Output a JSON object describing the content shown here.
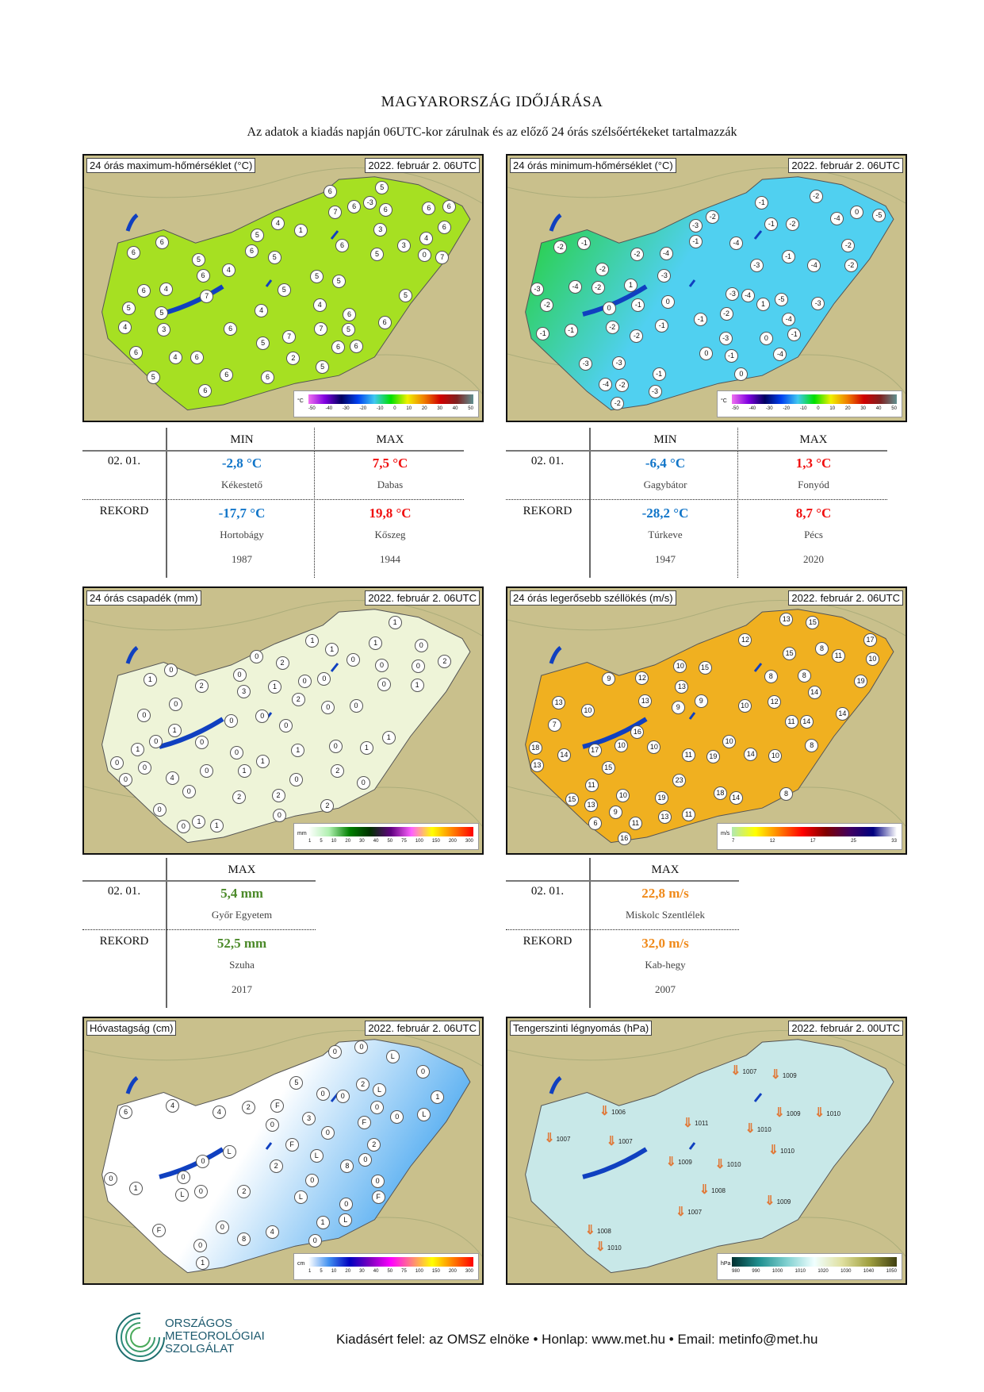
{
  "header": {
    "title": "MAGYARORSZÁG IDŐJÁRÁSA",
    "subtitle": "Az adatok a kiadás napján 06UTC-kor zárulnak és az előző 24 órás szélsőértékeket tartalmazzák"
  },
  "maps": [
    {
      "title": "24 órás maximum-hőmérséklet (°C)",
      "date": "2022. február 2. 06UTC",
      "colors": {
        "land": "#a6e022",
        "land2": "#c8e81e"
      },
      "legend": {
        "unit": "°C",
        "ticks": [
          "-50",
          "-40",
          "-30",
          "-20",
          "-10",
          "0",
          "10",
          "20",
          "30",
          "40",
          "50"
        ],
        "gradient": [
          "#f070f0",
          "#8000e0",
          "#000060",
          "#0040f0",
          "#40c8f0",
          "#00e000",
          "#f0f000",
          "#f08000",
          "#d00000",
          "#802020",
          "#609090"
        ]
      },
      "stations": [
        "4",
        "6",
        "3",
        "6",
        "4",
        "7",
        "5",
        "0",
        "6",
        "5",
        "3",
        "4",
        "6",
        "-3",
        "6",
        "6",
        "5",
        "5",
        "4",
        "6",
        "1",
        "5",
        "6",
        "6",
        "5",
        "7",
        "6",
        "5",
        "5",
        "4",
        "6",
        "2",
        "6",
        "6",
        "5",
        "4",
        "6",
        "5",
        "5",
        "6",
        "7",
        "7",
        "5",
        "6",
        "4",
        "3",
        "6",
        "5",
        "5",
        "6",
        "6",
        "7",
        "6",
        "5",
        "4",
        "6",
        "6"
      ]
    },
    {
      "title": "24 órás minimum-hőmérséklet (°C)",
      "date": "2022. február 2. 06UTC",
      "colors": {
        "land": "#50d0f0",
        "land2": "#20d020"
      },
      "legend": {
        "unit": "°C",
        "ticks": [
          "-50",
          "-40",
          "-30",
          "-20",
          "-10",
          "0",
          "10",
          "20",
          "30",
          "40",
          "50"
        ],
        "gradient": [
          "#f070f0",
          "#8000e0",
          "#000060",
          "#0040f0",
          "#40c8f0",
          "#00e000",
          "#f0f000",
          "#f08000",
          "#d00000",
          "#802020",
          "#609090"
        ]
      },
      "stations": [
        "-4",
        "-4",
        "-3",
        "-4",
        "-2",
        "-3",
        "-4",
        "-3",
        "-5",
        "-4",
        "-1",
        "-2",
        "-3",
        "-2",
        "0",
        "1",
        "0",
        "-1",
        "-3",
        "-2",
        "-1",
        "-5",
        "-2",
        "-1",
        "-1",
        "0",
        "-1",
        "-2",
        "-1",
        "-2",
        "1",
        "-1",
        "-2",
        "-3",
        "0",
        "0",
        "-1",
        "-2",
        "-3",
        "-4",
        "-2",
        "-1",
        "-1",
        "0",
        "-2",
        "-3",
        "-2",
        "-4",
        "-3",
        "-2",
        "-1",
        "-2",
        "-4",
        "-3",
        "-1",
        "-2",
        "-4"
      ]
    },
    {
      "title": "24 órás csapadék (mm)",
      "date": "2022. február 2. 06UTC",
      "colors": {
        "land": "#eef4d8",
        "land2": "#b8e0b0"
      },
      "legend": {
        "unit": "mm",
        "ticks": [
          "1",
          "5",
          "10",
          "20",
          "30",
          "40",
          "50",
          "75",
          "100",
          "150",
          "200",
          "300"
        ],
        "gradient": [
          "#ffffff",
          "#b0f0b0",
          "#008000",
          "#003000",
          "#600080",
          "#ff60ff",
          "#ffff00",
          "#ff8000",
          "#ff0000"
        ]
      },
      "stations": [
        "0",
        "1",
        "2",
        "0",
        "0",
        "0",
        "1",
        "0",
        "2",
        "2",
        "3",
        "4",
        "1",
        "2",
        "2",
        "0",
        "2",
        "2",
        "0",
        "1",
        "1",
        "0",
        "0",
        "0",
        "1",
        "0",
        "1",
        "1",
        "0",
        "0",
        "0",
        "1",
        "1",
        "2",
        "0",
        "0",
        "1",
        "0",
        "1",
        "0",
        "0",
        "0",
        "1",
        "0",
        "1",
        "0",
        "0",
        "0",
        "0",
        "0",
        "1",
        "0",
        "0",
        "0",
        "1",
        "0",
        "0"
      ]
    },
    {
      "title": "24 órás legerősebb széllökés (m/s)",
      "date": "2022. február 2. 06UTC",
      "colors": {
        "land": "#f0b020",
        "land2": "#f0f070"
      },
      "legend": {
        "unit": "m/s",
        "ticks": [
          "7",
          "12",
          "17",
          "25",
          "33"
        ],
        "gradient": [
          "#b0e8b0",
          "#ffff00",
          "#ff8000",
          "#ff0000",
          "#800000",
          "#400060",
          "#000080",
          "#ffffff"
        ]
      },
      "stations": [
        "8",
        "7",
        "12",
        "10",
        "9",
        "8",
        "11",
        "10",
        "23",
        "8",
        "13",
        "6",
        "14",
        "16",
        "18",
        "10",
        "13",
        "14",
        "11",
        "18",
        "12",
        "11",
        "15",
        "15",
        "13",
        "10",
        "8",
        "14",
        "13",
        "19",
        "10",
        "14",
        "11",
        "10",
        "11",
        "15",
        "16",
        "14",
        "9",
        "9",
        "10",
        "10",
        "17",
        "15",
        "19",
        "13",
        "15",
        "12",
        "8",
        "13",
        "17",
        "14",
        "11",
        "13",
        "10",
        "9",
        "19"
      ]
    },
    {
      "title": "Hóvastagság (cm)",
      "date": "2022. február 2. 06UTC",
      "colors": {
        "land": "#ffffff",
        "land2": "#4aa8f0"
      },
      "legend": {
        "unit": "cm",
        "ticks": [
          "1",
          "5",
          "10",
          "20",
          "30",
          "40",
          "50",
          "75",
          "100",
          "150",
          "200",
          "300"
        ],
        "gradient": [
          "#ffffff",
          "#4090f0",
          "#0000c0",
          "#8000c0",
          "#ff00ff",
          "#ff8080",
          "#ffff00",
          "#ff8000",
          "#ff0000"
        ]
      },
      "stations": [
        "L",
        "L",
        "0",
        "0",
        "4",
        "8",
        "F",
        "1",
        "2",
        "8",
        "2",
        "5",
        "1",
        "1",
        "2",
        "0",
        "6",
        "4",
        "4",
        "2",
        "F",
        "F",
        "0",
        "0",
        "3",
        "2",
        "1",
        "0",
        "0",
        "0",
        "L",
        "L",
        "L",
        "0",
        "F",
        "0",
        "0",
        "0",
        "0",
        "0",
        "0",
        "L",
        "0",
        "0",
        "L",
        "0",
        "F",
        "0",
        "0",
        "L"
      ]
    },
    {
      "title": "Tengerszinti légnyomás (hPa)",
      "date": "2022. február 2. 00UTC",
      "colors": {
        "land": "#c8e8e8",
        "land2": "#a8d8d8"
      },
      "legend": {
        "unit": "hPa",
        "ticks": [
          "980",
          "990",
          "1000",
          "1010",
          "1020",
          "1030",
          "1040",
          "1050"
        ],
        "gradient": [
          "#003030",
          "#209090",
          "#80d0d0",
          "#f0ffff",
          "#e0e0a0",
          "#a0a040",
          "#404010"
        ]
      },
      "pressure": [
        "1007",
        "1006",
        "1007",
        "1007",
        "1007",
        "1009",
        "1008",
        "1008",
        "1009",
        "1009",
        "1009",
        "1010",
        "1010",
        "1010",
        "1010",
        "1010",
        "1011"
      ]
    }
  ],
  "tables": [
    {
      "cols": [
        "MIN",
        "MAX"
      ],
      "rows": [
        {
          "label": "02. 01.",
          "values": [
            "-2,8 °C",
            "7,5 °C"
          ],
          "places": [
            "Kékestető",
            "Dabas"
          ],
          "years": []
        },
        {
          "label": "REKORD",
          "values": [
            "-17,7 °C",
            "19,8 °C"
          ],
          "places": [
            "Hortobágy",
            "Kőszeg"
          ],
          "years": [
            "1987",
            "1944"
          ]
        }
      ]
    },
    {
      "cols": [
        "MIN",
        "MAX"
      ],
      "rows": [
        {
          "label": "02. 01.",
          "values": [
            "-6,4 °C",
            "1,3 °C"
          ],
          "places": [
            "Gagybátor",
            "Fonyód"
          ],
          "years": []
        },
        {
          "label": "REKORD",
          "values": [
            "-28,2 °C",
            "8,7 °C"
          ],
          "places": [
            "Túrkeve",
            "Pécs"
          ],
          "years": [
            "1947",
            "2020"
          ]
        }
      ]
    },
    {
      "cols": [
        "MAX"
      ],
      "rows": [
        {
          "label": "02. 01.",
          "values": [
            "5,4 mm"
          ],
          "places": [
            "Győr Egyetem"
          ],
          "years": []
        },
        {
          "label": "REKORD",
          "values": [
            "52,5 mm"
          ],
          "places": [
            "Szuha"
          ],
          "years": [
            "2017"
          ]
        }
      ]
    },
    {
      "cols": [
        "MAX"
      ],
      "rows": [
        {
          "label": "02. 01.",
          "values": [
            "22,8 m/s"
          ],
          "places": [
            "Miskolc Szentlélek"
          ],
          "years": []
        },
        {
          "label": "REKORD",
          "values": [
            "32,0 m/s"
          ],
          "places": [
            "Kab-hegy"
          ],
          "years": [
            "2007"
          ]
        }
      ]
    }
  ],
  "footer": {
    "logo_lines": [
      "ORSZÁGOS",
      "METEOROLÓGIAI",
      "SZOLGÁLAT"
    ],
    "text": "Kiadásért felel: az OMSZ elnöke • Honlap: www.met.hu • Email: metinfo@met.hu"
  }
}
